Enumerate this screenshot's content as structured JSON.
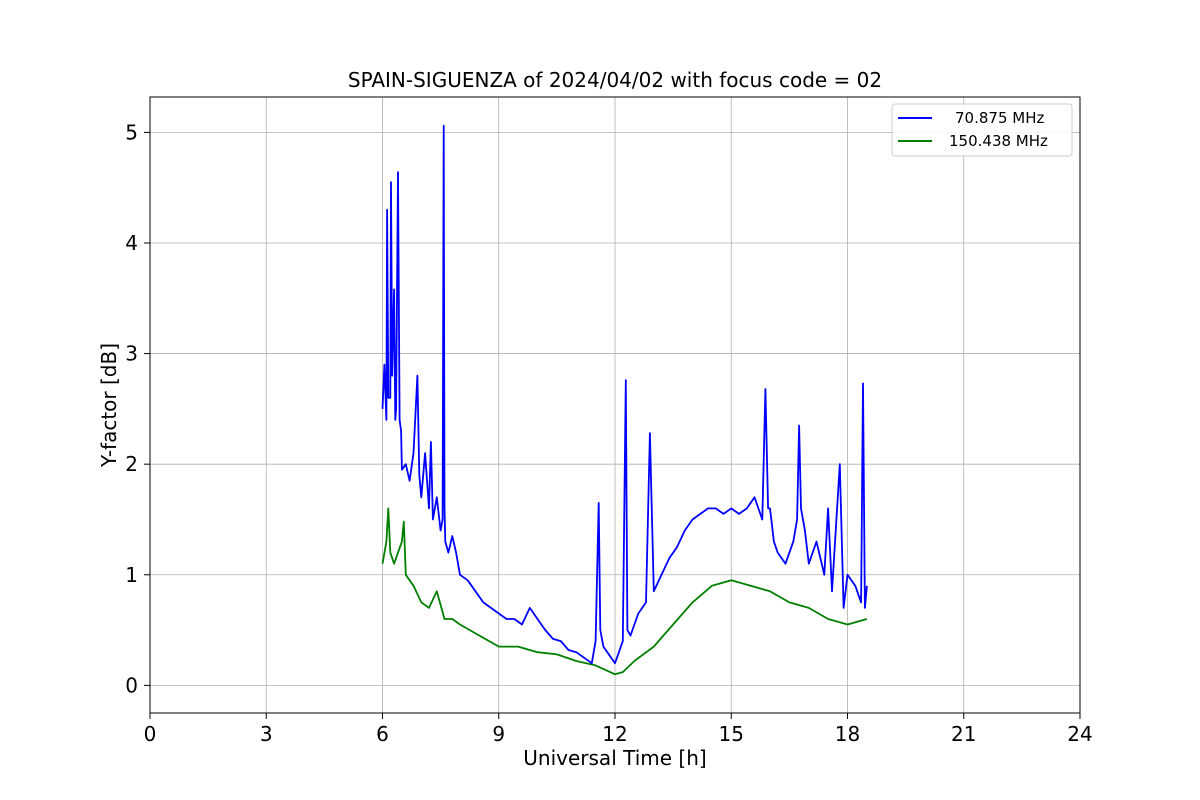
{
  "chart_data": {
    "type": "line",
    "title": "SPAIN-SIGUENZA of 2024/04/02 with focus code = 02",
    "xlabel": "Universal Time [h]",
    "ylabel": "Y-factor [dB]",
    "xlim": [
      0,
      24
    ],
    "ylim": [
      -0.25,
      5.32
    ],
    "xticks": [
      0,
      3,
      6,
      9,
      12,
      15,
      18,
      21,
      24
    ],
    "yticks": [
      0,
      1,
      2,
      3,
      4,
      5
    ],
    "grid": true,
    "legend_position": "top-right",
    "series": [
      {
        "name": "70.875 MHz",
        "color": "#0000ff",
        "x": [
          6.0,
          6.05,
          6.1,
          6.12,
          6.15,
          6.2,
          6.22,
          6.25,
          6.3,
          6.33,
          6.35,
          6.4,
          6.44,
          6.48,
          6.5,
          6.6,
          6.7,
          6.8,
          6.9,
          6.95,
          7.0,
          7.1,
          7.2,
          7.25,
          7.3,
          7.4,
          7.5,
          7.55,
          7.58,
          7.6,
          7.62,
          7.7,
          7.8,
          7.9,
          8.0,
          8.2,
          8.4,
          8.6,
          8.8,
          9.0,
          9.2,
          9.4,
          9.6,
          9.8,
          10.0,
          10.2,
          10.4,
          10.6,
          10.8,
          11.0,
          11.2,
          11.4,
          11.5,
          11.58,
          11.62,
          11.7,
          11.8,
          11.9,
          12.0,
          12.1,
          12.2,
          12.28,
          12.32,
          12.4,
          12.5,
          12.6,
          12.8,
          12.9,
          13.0,
          13.2,
          13.4,
          13.6,
          13.8,
          14.0,
          14.2,
          14.4,
          14.6,
          14.8,
          15.0,
          15.2,
          15.4,
          15.6,
          15.8,
          15.88,
          15.95,
          16.0,
          16.1,
          16.2,
          16.4,
          16.6,
          16.7,
          16.75,
          16.8,
          16.9,
          17.0,
          17.2,
          17.4,
          17.5,
          17.6,
          17.8,
          17.9,
          18.0,
          18.2,
          18.35,
          18.4,
          18.45,
          18.5
        ],
        "y": [
          2.5,
          2.9,
          2.4,
          4.3,
          2.6,
          2.6,
          4.55,
          2.8,
          3.58,
          2.4,
          2.5,
          4.64,
          2.4,
          2.3,
          1.95,
          2.0,
          1.85,
          2.1,
          2.8,
          1.9,
          1.7,
          2.1,
          1.6,
          2.2,
          1.5,
          1.7,
          1.4,
          1.5,
          5.06,
          1.6,
          1.3,
          1.2,
          1.35,
          1.2,
          1.0,
          0.95,
          0.85,
          0.75,
          0.7,
          0.65,
          0.6,
          0.6,
          0.55,
          0.7,
          0.6,
          0.5,
          0.42,
          0.4,
          0.32,
          0.3,
          0.25,
          0.2,
          0.4,
          1.65,
          0.5,
          0.35,
          0.3,
          0.25,
          0.2,
          0.3,
          0.4,
          2.76,
          0.5,
          0.45,
          0.55,
          0.65,
          0.75,
          2.28,
          0.85,
          1.0,
          1.15,
          1.25,
          1.4,
          1.5,
          1.55,
          1.6,
          1.6,
          1.55,
          1.6,
          1.55,
          1.6,
          1.7,
          1.5,
          2.68,
          1.6,
          1.6,
          1.3,
          1.2,
          1.1,
          1.3,
          1.5,
          2.35,
          1.6,
          1.4,
          1.1,
          1.3,
          1.0,
          1.6,
          0.85,
          2.0,
          0.7,
          1.0,
          0.9,
          0.75,
          2.73,
          0.7,
          0.9
        ]
      },
      {
        "name": "150.438 MHz",
        "color": "#008000",
        "x": [
          6.0,
          6.1,
          6.15,
          6.2,
          6.3,
          6.4,
          6.5,
          6.55,
          6.6,
          6.8,
          7.0,
          7.2,
          7.4,
          7.6,
          7.8,
          8.0,
          8.5,
          9.0,
          9.5,
          10.0,
          10.5,
          11.0,
          11.5,
          12.0,
          12.2,
          12.5,
          13.0,
          13.5,
          14.0,
          14.5,
          15.0,
          15.5,
          16.0,
          16.5,
          17.0,
          17.5,
          18.0,
          18.5
        ],
        "y": [
          1.1,
          1.3,
          1.6,
          1.2,
          1.1,
          1.2,
          1.3,
          1.48,
          1.0,
          0.9,
          0.75,
          0.7,
          0.85,
          0.6,
          0.6,
          0.55,
          0.45,
          0.35,
          0.35,
          0.3,
          0.28,
          0.22,
          0.18,
          0.1,
          0.12,
          0.22,
          0.35,
          0.55,
          0.75,
          0.9,
          0.95,
          0.9,
          0.85,
          0.75,
          0.7,
          0.6,
          0.55,
          0.6
        ]
      }
    ]
  }
}
